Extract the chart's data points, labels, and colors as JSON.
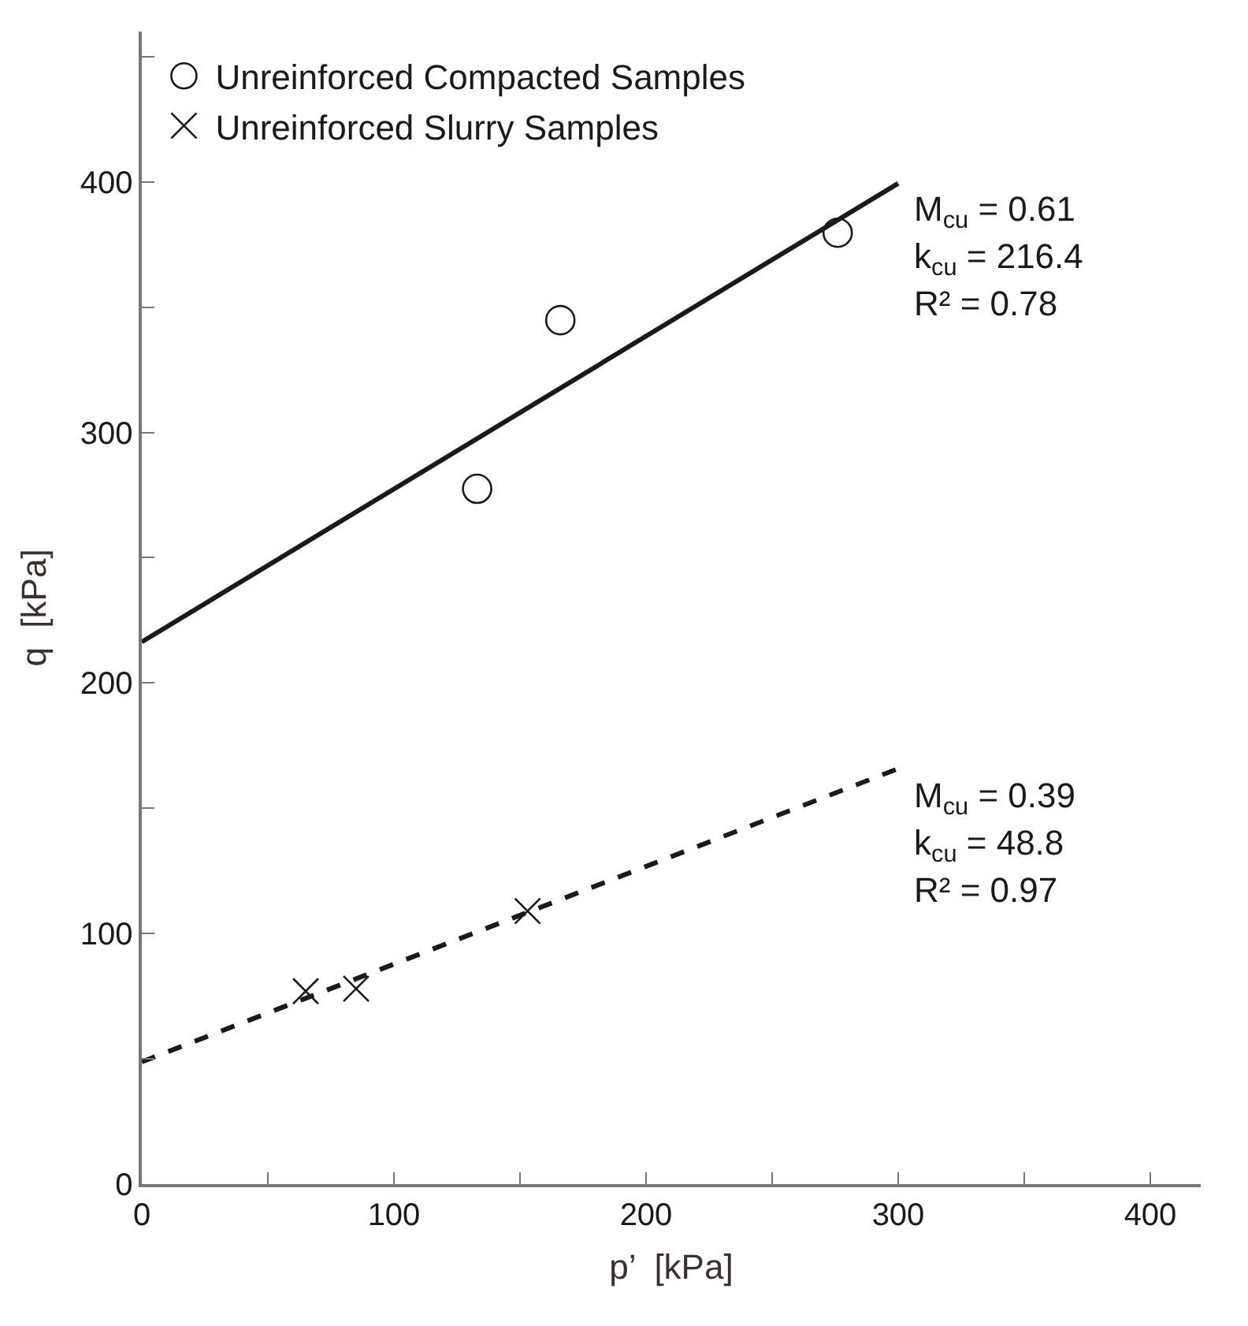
{
  "chart_data": {
    "type": "scatter",
    "xlabel": "p’  [kPa]",
    "ylabel": "q  [kPa]",
    "xlim": [
      0,
      420
    ],
    "ylim": [
      0,
      460
    ],
    "xticks": [
      0,
      {
        "value": 50,
        "label": null
      },
      100,
      {
        "value": 150,
        "label": null
      },
      200,
      {
        "value": 250,
        "label": null
      },
      300,
      {
        "value": 350,
        "label": null
      },
      400
    ],
    "yticks": [
      0,
      {
        "value": 50,
        "label": null
      },
      100,
      {
        "value": 150,
        "label": null
      },
      200,
      {
        "value": 250,
        "label": null
      },
      300,
      {
        "value": 350,
        "label": null
      },
      400,
      {
        "value": 450,
        "label": null
      }
    ],
    "legend": "top left",
    "series": [
      {
        "name": "Unreinforced Compacted Samples",
        "marker": "circle",
        "color": "#1a1a1a",
        "x": [
          133,
          166,
          276
        ],
        "values": [
          277.5,
          344.8,
          379.7
        ]
      },
      {
        "name": "Unreinforced Slurry Samples",
        "marker": "cross",
        "color": "#1a1a1a",
        "x": [
          65,
          85,
          153
        ],
        "values": [
          77,
          78,
          109
        ]
      },
      {
        "type": "line",
        "line_style": "solid",
        "marker": "none",
        "color": "#1a1a1a",
        "x": [
          0,
          300
        ],
        "values": [
          216.4,
          399.4
        ]
      },
      {
        "type": "line",
        "line_style": "dashed",
        "marker": "none",
        "color": "#1a1a1a",
        "x": [
          0,
          300
        ],
        "values": [
          48.8,
          165.8
        ]
      }
    ],
    "annotations": [
      "M$_{cu}$ = 0.61",
      "k$_{cu}$ = 216.4",
      "R² = 0.78",
      "M$_{cu}$ = 0.39",
      "k$_{cu}$ = 48.8",
      "R² = 0.97"
    ]
  }
}
